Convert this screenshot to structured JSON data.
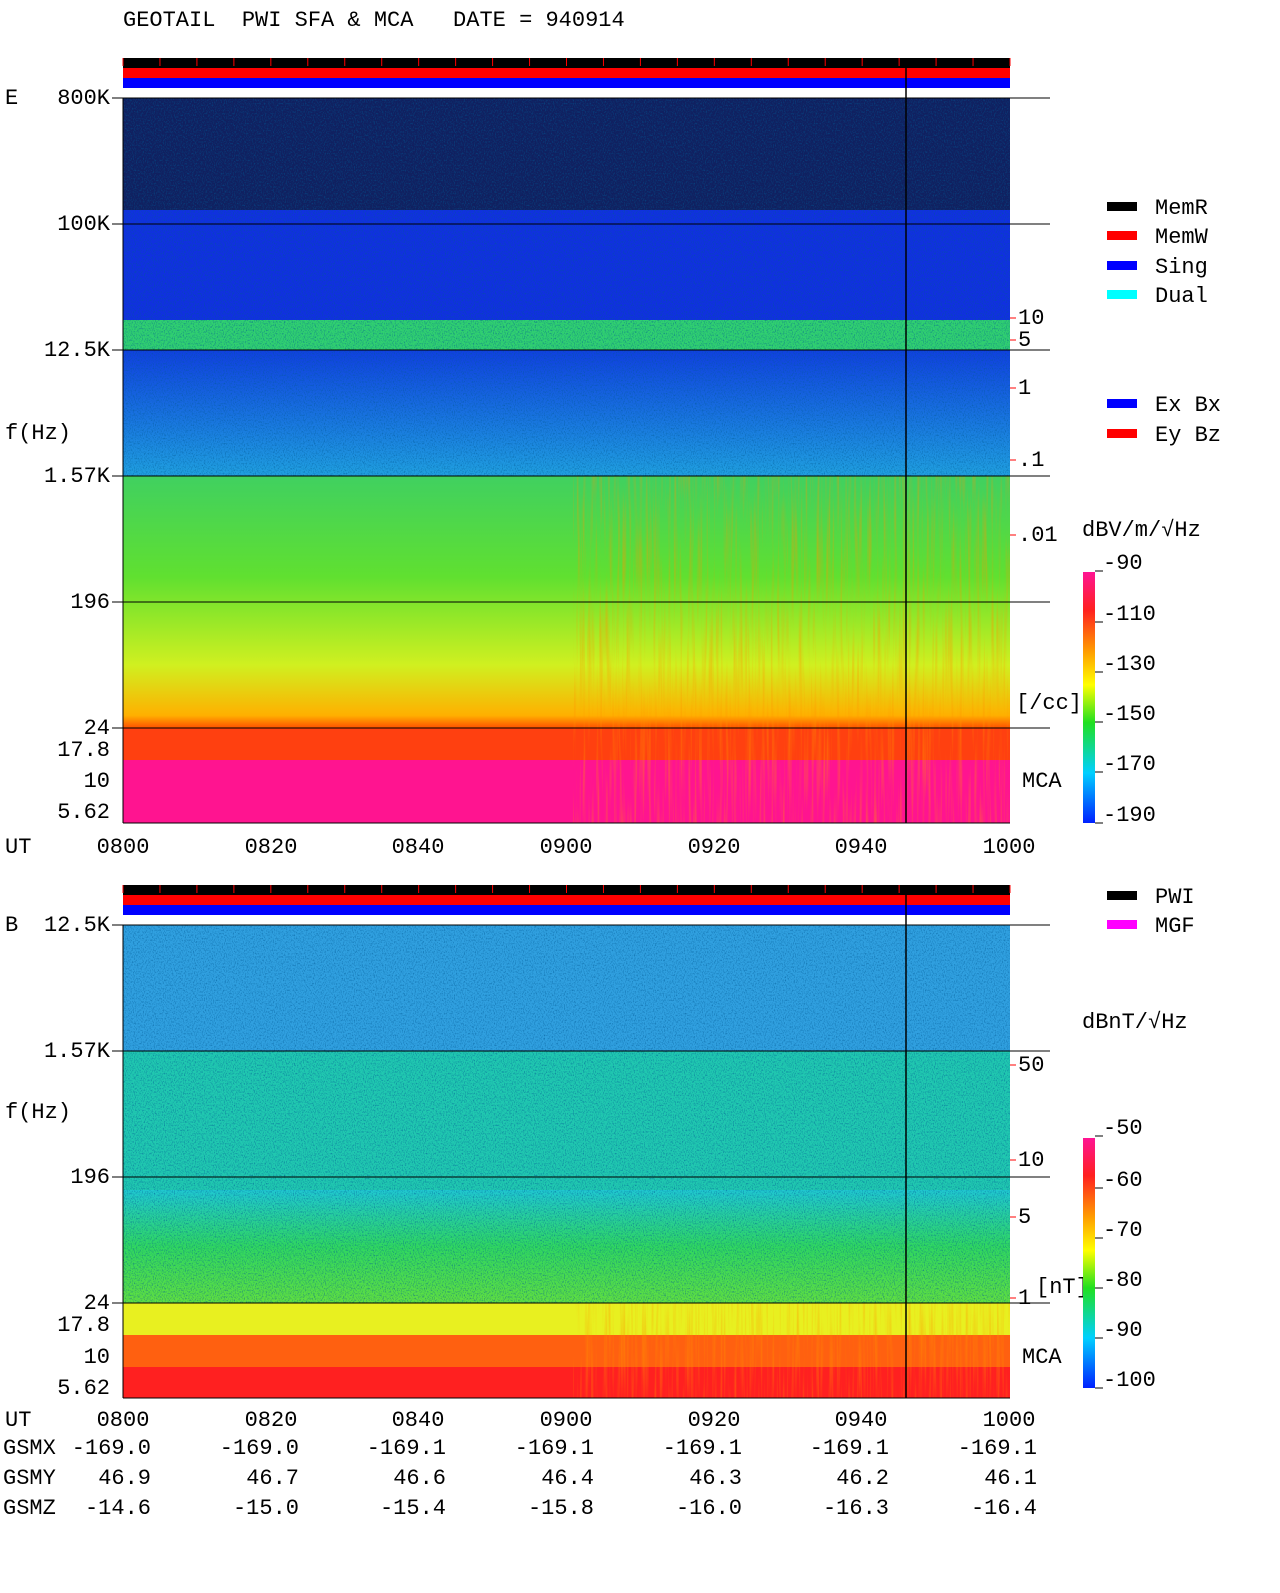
{
  "header": {
    "title": "GEOTAIL  PWI SFA & MCA   DATE = 940914"
  },
  "panels": [
    {
      "label": "E",
      "axis_label": "f(Hz)",
      "time_label": "UT",
      "freq_ticks": [
        "800K",
        "100K",
        "12.5K",
        "1.57K",
        "196",
        "24",
        "17.8",
        "10",
        "5.62"
      ],
      "time_ticks": [
        "0800",
        "0820",
        "0840",
        "0900",
        "0920",
        "0940",
        "1000"
      ],
      "status_legend": [
        "MemR",
        "MemW",
        "Sing",
        "Dual"
      ],
      "mode_legend": [
        "Ex Bx",
        "Ey Bz"
      ],
      "scale_ticks": [
        "10",
        "5",
        "1",
        ".1",
        ".01"
      ],
      "scale_unit": "[/cc]",
      "mca_label": "MCA",
      "colorbar_unit": "dBV/m/√Hz",
      "colorbar_ticks": [
        "-90",
        "-110",
        "-130",
        "-150",
        "-170",
        "-190"
      ]
    },
    {
      "label": "B",
      "axis_label": "f(Hz)",
      "time_label": "UT",
      "freq_ticks": [
        "12.5K",
        "1.57K",
        "196",
        "24",
        "17.8",
        "10",
        "5.62"
      ],
      "time_ticks": [
        "0800",
        "0820",
        "0840",
        "0900",
        "0920",
        "0940",
        "1000"
      ],
      "status_legend": [
        "PWI",
        "MGF"
      ],
      "scale_ticks": [
        "50",
        "10",
        "5",
        "1"
      ],
      "scale_unit": "[nT]",
      "mca_label": "MCA",
      "colorbar_unit": "dBnT/√Hz",
      "colorbar_ticks": [
        "-50",
        "-60",
        "-70",
        "-80",
        "-90",
        "-100"
      ]
    }
  ],
  "orbit": {
    "rows": [
      {
        "label": "GSMX",
        "values": [
          "-169.0",
          "-169.0",
          "-169.1",
          "-169.1",
          "-169.1",
          "-169.1",
          "-169.1"
        ]
      },
      {
        "label": "GSMY",
        "values": [
          "46.9",
          "46.7",
          "46.6",
          "46.4",
          "46.3",
          "46.2",
          "46.1"
        ]
      },
      {
        "label": "GSMZ",
        "values": [
          "-14.6",
          "-15.0",
          "-15.4",
          "-15.8",
          "-16.0",
          "-16.3",
          "-16.4"
        ]
      }
    ]
  }
}
